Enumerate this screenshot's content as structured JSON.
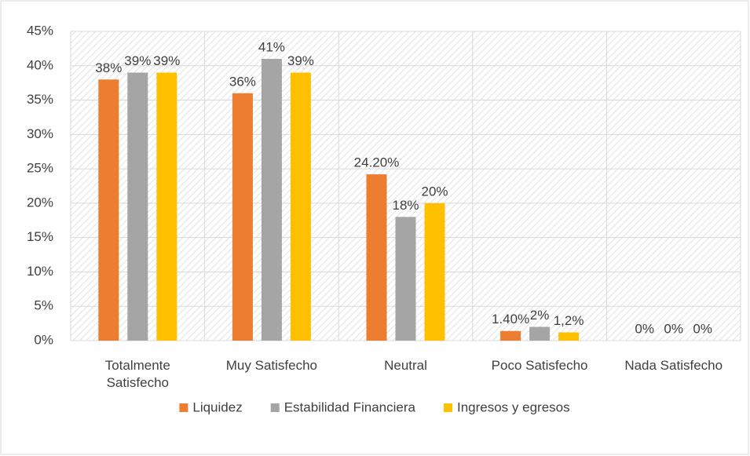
{
  "chart_data": {
    "type": "bar",
    "categories": [
      "Totalmente Satisfecho",
      "Muy Satisfecho",
      "Neutral",
      "Poco Satisfecho",
      "Nada Satisfecho"
    ],
    "series": [
      {
        "name": "Liquidez",
        "color": "#ED7D31",
        "values": [
          38,
          36,
          24.2,
          1.4,
          0
        ],
        "value_labels": [
          "38%",
          "36%",
          "24.20%",
          "1.40%",
          "0%"
        ]
      },
      {
        "name": "Estabilidad Financiera",
        "color": "#A5A5A5",
        "values": [
          39,
          41,
          18,
          2,
          0
        ],
        "value_labels": [
          "39%",
          "41%",
          "18%",
          "2%",
          "0%"
        ]
      },
      {
        "name": "Ingresos y egresos",
        "color": "#FFC000",
        "values": [
          39,
          39,
          20,
          1.2,
          0
        ],
        "value_labels": [
          "39%",
          "39%",
          "20%",
          "1,2%",
          "0%"
        ]
      }
    ],
    "ylim": [
      0,
      45
    ],
    "yticks": [
      {
        "value": 0,
        "label": "0%"
      },
      {
        "value": 5,
        "label": "5%"
      },
      {
        "value": 10,
        "label": "10%"
      },
      {
        "value": 15,
        "label": "15%"
      },
      {
        "value": 20,
        "label": "20%"
      },
      {
        "value": 25,
        "label": "25%"
      },
      {
        "value": 30,
        "label": "30%"
      },
      {
        "value": 35,
        "label": "35%"
      },
      {
        "value": 40,
        "label": "40%"
      },
      {
        "value": 45,
        "label": "45%"
      }
    ],
    "grid": true,
    "legend": "bottom"
  }
}
